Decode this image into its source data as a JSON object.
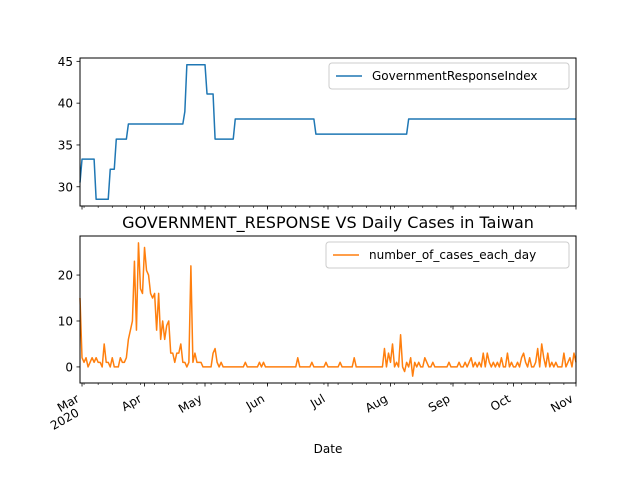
{
  "chart_data": [
    {
      "type": "line",
      "title": "",
      "xlabel": "",
      "ylabel": "",
      "x_range": [
        "2020-02-29",
        "2020-11-01"
      ],
      "ylim": [
        27.7,
        45.4
      ],
      "yticks": [
        30,
        35,
        40,
        45
      ],
      "grid": false,
      "legend_position": "upper right",
      "series": [
        {
          "name": "GovernmentResponseIndex",
          "color": "#1f77b4",
          "points": [
            [
              "2020-02-29",
              30.5
            ],
            [
              "2020-03-01",
              33.3
            ],
            [
              "2020-03-07",
              33.3
            ],
            [
              "2020-03-08",
              28.5
            ],
            [
              "2020-03-14",
              28.5
            ],
            [
              "2020-03-15",
              32.1
            ],
            [
              "2020-03-17",
              32.1
            ],
            [
              "2020-03-18",
              35.7
            ],
            [
              "2020-03-23",
              35.7
            ],
            [
              "2020-03-24",
              37.5
            ],
            [
              "2020-04-20",
              37.5
            ],
            [
              "2020-04-21",
              39.0
            ],
            [
              "2020-04-22",
              44.6
            ],
            [
              "2020-04-27",
              44.6
            ],
            [
              "2020-05-01",
              44.6
            ],
            [
              "2020-05-02",
              41.1
            ],
            [
              "2020-05-05",
              41.1
            ],
            [
              "2020-05-06",
              35.7
            ],
            [
              "2020-05-15",
              35.7
            ],
            [
              "2020-05-16",
              38.1
            ],
            [
              "2020-06-24",
              38.1
            ],
            [
              "2020-06-25",
              36.3
            ],
            [
              "2020-08-09",
              36.3
            ],
            [
              "2020-08-10",
              38.1
            ],
            [
              "2020-11-01",
              38.1
            ]
          ]
        }
      ]
    },
    {
      "type": "line",
      "title": "GOVERNMENT_RESPONSE VS Daily Cases in Taiwan",
      "xlabel": "Date",
      "ylabel": "",
      "x_range": [
        "2020-02-29",
        "2020-11-01"
      ],
      "ylim": [
        -3.5,
        28.5
      ],
      "yticks": [
        0,
        10,
        20
      ],
      "grid": false,
      "legend_position": "upper right",
      "xticks": [
        {
          "date": "2020-03-01",
          "label": "Mar",
          "sublabel": "2020"
        },
        {
          "date": "2020-04-01",
          "label": "Apr",
          "sublabel": ""
        },
        {
          "date": "2020-05-01",
          "label": "May",
          "sublabel": ""
        },
        {
          "date": "2020-06-01",
          "label": "Jun",
          "sublabel": ""
        },
        {
          "date": "2020-07-01",
          "label": "Jul",
          "sublabel": ""
        },
        {
          "date": "2020-08-01",
          "label": "Aug",
          "sublabel": ""
        },
        {
          "date": "2020-09-01",
          "label": "Sep",
          "sublabel": ""
        },
        {
          "date": "2020-10-01",
          "label": "Oct",
          "sublabel": ""
        },
        {
          "date": "2020-11-01",
          "label": "Nov",
          "sublabel": ""
        }
      ],
      "series": [
        {
          "name": "number_of_cases_each_day",
          "color": "#ff7f0e",
          "points": [
            [
              "2020-02-29",
              15
            ],
            [
              "2020-03-01",
              2
            ],
            [
              "2020-03-02",
              1
            ],
            [
              "2020-03-03",
              2
            ],
            [
              "2020-03-04",
              0
            ],
            [
              "2020-03-05",
              1
            ],
            [
              "2020-03-06",
              2
            ],
            [
              "2020-03-07",
              1
            ],
            [
              "2020-03-08",
              2
            ],
            [
              "2020-03-09",
              1
            ],
            [
              "2020-03-10",
              1
            ],
            [
              "2020-03-11",
              0
            ],
            [
              "2020-03-12",
              5
            ],
            [
              "2020-03-13",
              1
            ],
            [
              "2020-03-14",
              1
            ],
            [
              "2020-03-15",
              0
            ],
            [
              "2020-03-16",
              2
            ],
            [
              "2020-03-17",
              0
            ],
            [
              "2020-03-18",
              0
            ],
            [
              "2020-03-19",
              0
            ],
            [
              "2020-03-20",
              2
            ],
            [
              "2020-03-21",
              1
            ],
            [
              "2020-03-22",
              1
            ],
            [
              "2020-03-23",
              2
            ],
            [
              "2020-03-24",
              6
            ],
            [
              "2020-03-25",
              8
            ],
            [
              "2020-03-26",
              10
            ],
            [
              "2020-03-27",
              23
            ],
            [
              "2020-03-28",
              8
            ],
            [
              "2020-03-29",
              27
            ],
            [
              "2020-03-30",
              17
            ],
            [
              "2020-03-31",
              16
            ],
            [
              "2020-04-01",
              26
            ],
            [
              "2020-04-02",
              21
            ],
            [
              "2020-04-03",
              20
            ],
            [
              "2020-04-04",
              16
            ],
            [
              "2020-04-05",
              15
            ],
            [
              "2020-04-06",
              16
            ],
            [
              "2020-04-07",
              8
            ],
            [
              "2020-04-08",
              16
            ],
            [
              "2020-04-09",
              6
            ],
            [
              "2020-04-10",
              10
            ],
            [
              "2020-04-11",
              6
            ],
            [
              "2020-04-12",
              9
            ],
            [
              "2020-04-13",
              10
            ],
            [
              "2020-04-14",
              3
            ],
            [
              "2020-04-15",
              3
            ],
            [
              "2020-04-16",
              1
            ],
            [
              "2020-04-17",
              3
            ],
            [
              "2020-04-18",
              3
            ],
            [
              "2020-04-19",
              5
            ],
            [
              "2020-04-20",
              1
            ],
            [
              "2020-04-21",
              1
            ],
            [
              "2020-04-22",
              0
            ],
            [
              "2020-04-23",
              1
            ],
            [
              "2020-04-24",
              22
            ],
            [
              "2020-04-25",
              1
            ],
            [
              "2020-04-26",
              3
            ],
            [
              "2020-04-27",
              1
            ],
            [
              "2020-04-28",
              1
            ],
            [
              "2020-04-29",
              1
            ],
            [
              "2020-04-30",
              0
            ],
            [
              "2020-05-01",
              0
            ],
            [
              "2020-05-02",
              0
            ],
            [
              "2020-05-03",
              0
            ],
            [
              "2020-05-04",
              0
            ],
            [
              "2020-05-05",
              3
            ],
            [
              "2020-05-06",
              4
            ],
            [
              "2020-05-07",
              1
            ],
            [
              "2020-05-08",
              0
            ],
            [
              "2020-05-09",
              1
            ],
            [
              "2020-05-10",
              0
            ],
            [
              "2020-05-20",
              0
            ],
            [
              "2020-05-21",
              1
            ],
            [
              "2020-05-22",
              0
            ],
            [
              "2020-05-27",
              0
            ],
            [
              "2020-05-28",
              1
            ],
            [
              "2020-05-29",
              0
            ],
            [
              "2020-05-30",
              1
            ],
            [
              "2020-05-31",
              0
            ],
            [
              "2020-06-15",
              0
            ],
            [
              "2020-06-16",
              2
            ],
            [
              "2020-06-17",
              0
            ],
            [
              "2020-06-22",
              0
            ],
            [
              "2020-06-23",
              1
            ],
            [
              "2020-06-24",
              0
            ],
            [
              "2020-06-29",
              0
            ],
            [
              "2020-06-30",
              1
            ],
            [
              "2020-07-01",
              0
            ],
            [
              "2020-07-06",
              0
            ],
            [
              "2020-07-07",
              1
            ],
            [
              "2020-07-08",
              0
            ],
            [
              "2020-07-13",
              0
            ],
            [
              "2020-07-14",
              2
            ],
            [
              "2020-07-15",
              0
            ],
            [
              "2020-07-28",
              0
            ],
            [
              "2020-07-29",
              4
            ],
            [
              "2020-07-30",
              0
            ],
            [
              "2020-07-31",
              3
            ],
            [
              "2020-08-01",
              1
            ],
            [
              "2020-08-02",
              5
            ],
            [
              "2020-08-03",
              0
            ],
            [
              "2020-08-04",
              1
            ],
            [
              "2020-08-05",
              0
            ],
            [
              "2020-08-06",
              7
            ],
            [
              "2020-08-07",
              0
            ],
            [
              "2020-08-08",
              -1
            ],
            [
              "2020-08-09",
              1
            ],
            [
              "2020-08-10",
              0
            ],
            [
              "2020-08-11",
              2
            ],
            [
              "2020-08-12",
              -2
            ],
            [
              "2020-08-13",
              1
            ],
            [
              "2020-08-14",
              0
            ],
            [
              "2020-08-15",
              1
            ],
            [
              "2020-08-16",
              0
            ],
            [
              "2020-08-17",
              0
            ],
            [
              "2020-08-18",
              2
            ],
            [
              "2020-08-19",
              1
            ],
            [
              "2020-08-20",
              0
            ],
            [
              "2020-08-21",
              0
            ],
            [
              "2020-08-22",
              1
            ],
            [
              "2020-08-23",
              0
            ],
            [
              "2020-08-24",
              0
            ],
            [
              "2020-08-25",
              0
            ],
            [
              "2020-08-26",
              0
            ],
            [
              "2020-08-27",
              0
            ],
            [
              "2020-08-28",
              0
            ],
            [
              "2020-08-29",
              0
            ],
            [
              "2020-08-30",
              1
            ],
            [
              "2020-08-31",
              0
            ],
            [
              "2020-09-01",
              0
            ],
            [
              "2020-09-02",
              0
            ],
            [
              "2020-09-03",
              0
            ],
            [
              "2020-09-04",
              1
            ],
            [
              "2020-09-05",
              0
            ],
            [
              "2020-09-06",
              0
            ],
            [
              "2020-09-07",
              1
            ],
            [
              "2020-09-08",
              0
            ],
            [
              "2020-09-09",
              1
            ],
            [
              "2020-09-10",
              2
            ],
            [
              "2020-09-11",
              0
            ],
            [
              "2020-09-12",
              1
            ],
            [
              "2020-09-13",
              0
            ],
            [
              "2020-09-14",
              1
            ],
            [
              "2020-09-15",
              0
            ],
            [
              "2020-09-16",
              3
            ],
            [
              "2020-09-17",
              0
            ],
            [
              "2020-09-18",
              3
            ],
            [
              "2020-09-19",
              1
            ],
            [
              "2020-09-20",
              0
            ],
            [
              "2020-09-21",
              1
            ],
            [
              "2020-09-22",
              0
            ],
            [
              "2020-09-23",
              1
            ],
            [
              "2020-09-24",
              0
            ],
            [
              "2020-09-25",
              2
            ],
            [
              "2020-09-26",
              0
            ],
            [
              "2020-09-27",
              0
            ],
            [
              "2020-09-28",
              3
            ],
            [
              "2020-09-29",
              0
            ],
            [
              "2020-09-30",
              1
            ],
            [
              "2020-10-01",
              0
            ],
            [
              "2020-10-02",
              0
            ],
            [
              "2020-10-03",
              1
            ],
            [
              "2020-10-04",
              0
            ],
            [
              "2020-10-05",
              2
            ],
            [
              "2020-10-06",
              3
            ],
            [
              "2020-10-07",
              1
            ],
            [
              "2020-10-08",
              0
            ],
            [
              "2020-10-09",
              2
            ],
            [
              "2020-10-10",
              0
            ],
            [
              "2020-10-11",
              0
            ],
            [
              "2020-10-12",
              1
            ],
            [
              "2020-10-13",
              4
            ],
            [
              "2020-10-14",
              0
            ],
            [
              "2020-10-15",
              5
            ],
            [
              "2020-10-16",
              2
            ],
            [
              "2020-10-17",
              0
            ],
            [
              "2020-10-18",
              3
            ],
            [
              "2020-10-19",
              0
            ],
            [
              "2020-10-20",
              1
            ],
            [
              "2020-10-21",
              0
            ],
            [
              "2020-10-22",
              1
            ],
            [
              "2020-10-23",
              0
            ],
            [
              "2020-10-24",
              0
            ],
            [
              "2020-10-25",
              0
            ],
            [
              "2020-10-26",
              3
            ],
            [
              "2020-10-27",
              0
            ],
            [
              "2020-10-28",
              1
            ],
            [
              "2020-10-29",
              2
            ],
            [
              "2020-10-30",
              0
            ],
            [
              "2020-10-31",
              3
            ],
            [
              "2020-11-01",
              1
            ]
          ]
        }
      ]
    }
  ]
}
